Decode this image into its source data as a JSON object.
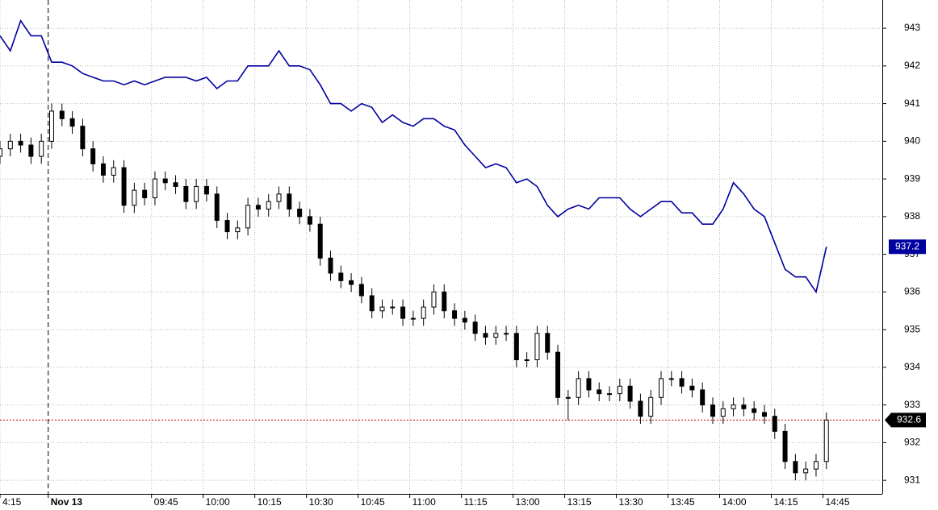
{
  "chart_data": {
    "type": "candlestick",
    "x": [
      0,
      3,
      6,
      9,
      12,
      15,
      18,
      21,
      24,
      27,
      30,
      33,
      36,
      39,
      42,
      45,
      48,
      51,
      54,
      57,
      60,
      63,
      66,
      69,
      72,
      75,
      78,
      81,
      84,
      87,
      90,
      93,
      96,
      99,
      102,
      105,
      108,
      111,
      114,
      117,
      120,
      123,
      126,
      129,
      132,
      135,
      138,
      141,
      144,
      147,
      150,
      153,
      156,
      159,
      162,
      165,
      168,
      171,
      174,
      177,
      180,
      183,
      186,
      189,
      192,
      195,
      198,
      201,
      204,
      207,
      210,
      213,
      216,
      219,
      222,
      225,
      228,
      231,
      234,
      237,
      240
    ],
    "open": [
      939.6,
      939.8,
      940.0,
      939.9,
      939.6,
      940.0,
      940.8,
      940.6,
      940.4,
      939.8,
      939.4,
      939.1,
      939.3,
      938.3,
      938.7,
      938.5,
      939.0,
      938.9,
      938.8,
      938.4,
      938.8,
      938.6,
      937.9,
      937.6,
      937.7,
      938.3,
      938.2,
      938.4,
      938.6,
      938.2,
      938.0,
      937.8,
      936.9,
      936.5,
      936.3,
      936.2,
      935.9,
      935.5,
      935.6,
      935.6,
      935.3,
      935.3,
      935.6,
      936.0,
      935.5,
      935.3,
      935.2,
      934.9,
      934.8,
      934.9,
      934.9,
      934.2,
      934.2,
      934.9,
      934.4,
      933.2,
      933.2,
      933.7,
      933.4,
      933.3,
      933.3,
      933.5,
      933.1,
      932.7,
      933.2,
      933.7,
      933.7,
      933.5,
      933.4,
      933.0,
      932.7,
      932.9,
      933.0,
      932.9,
      932.8,
      932.7,
      932.3,
      931.5,
      931.2,
      931.3,
      931.5
    ],
    "high": [
      940.0,
      940.2,
      940.2,
      940.1,
      940.2,
      941.0,
      941.0,
      940.8,
      940.6,
      940.0,
      939.6,
      939.5,
      939.5,
      938.9,
      938.9,
      939.2,
      939.2,
      939.1,
      939.0,
      939.0,
      939.0,
      938.8,
      938.1,
      937.9,
      938.5,
      938.5,
      938.6,
      938.8,
      938.8,
      938.4,
      938.2,
      938.0,
      937.1,
      936.7,
      936.5,
      936.4,
      936.1,
      935.8,
      935.8,
      935.8,
      935.5,
      935.8,
      936.2,
      936.2,
      935.7,
      935.5,
      935.4,
      935.1,
      935.1,
      935.1,
      935.1,
      934.4,
      935.1,
      935.1,
      934.6,
      933.4,
      933.9,
      933.9,
      933.6,
      933.5,
      933.7,
      933.7,
      933.3,
      933.4,
      933.9,
      933.9,
      933.9,
      933.7,
      933.6,
      933.2,
      933.1,
      933.2,
      933.2,
      933.1,
      933.0,
      932.9,
      932.5,
      931.7,
      931.5,
      931.7,
      932.8
    ],
    "low": [
      939.4,
      939.6,
      939.7,
      939.4,
      939.4,
      939.8,
      940.4,
      940.2,
      939.6,
      939.2,
      938.9,
      938.9,
      938.1,
      938.1,
      938.3,
      938.3,
      938.7,
      938.6,
      938.2,
      938.2,
      938.4,
      937.7,
      937.4,
      937.4,
      937.5,
      938.0,
      938.0,
      938.2,
      938.0,
      937.8,
      937.6,
      936.7,
      936.3,
      936.1,
      936.0,
      935.7,
      935.3,
      935.3,
      935.4,
      935.1,
      935.1,
      935.1,
      935.4,
      935.3,
      935.1,
      935.0,
      934.7,
      934.6,
      934.6,
      934.7,
      934.0,
      934.0,
      934.0,
      934.2,
      933.0,
      932.6,
      933.0,
      933.2,
      933.1,
      933.1,
      933.1,
      932.9,
      932.5,
      932.5,
      933.0,
      933.5,
      933.3,
      933.2,
      932.8,
      932.5,
      932.5,
      932.7,
      932.7,
      932.6,
      932.5,
      932.1,
      931.3,
      931.0,
      931.0,
      931.1,
      931.3
    ],
    "close": [
      939.8,
      940.0,
      939.9,
      939.6,
      940.0,
      940.8,
      940.6,
      940.4,
      939.8,
      939.4,
      939.1,
      939.3,
      938.3,
      938.7,
      938.5,
      939.0,
      938.9,
      938.8,
      938.4,
      938.8,
      938.6,
      937.9,
      937.6,
      937.7,
      938.3,
      938.2,
      938.4,
      938.6,
      938.2,
      938.0,
      937.8,
      936.9,
      936.5,
      936.3,
      936.2,
      935.9,
      935.5,
      935.6,
      935.6,
      935.3,
      935.3,
      935.6,
      936.0,
      935.5,
      935.3,
      935.2,
      934.9,
      934.8,
      934.9,
      934.9,
      934.2,
      934.2,
      934.9,
      934.4,
      933.2,
      933.2,
      933.7,
      933.4,
      933.3,
      933.3,
      933.5,
      933.1,
      932.7,
      933.2,
      933.7,
      933.7,
      933.5,
      933.4,
      933.0,
      932.7,
      932.9,
      933.0,
      932.9,
      932.8,
      932.7,
      932.3,
      931.5,
      931.2,
      931.3,
      931.5,
      932.6
    ],
    "up_color": "#ffffff",
    "down_color": "#000000",
    "last_line_color": "#cc0000",
    "line": {
      "type": "line",
      "color": "#0000a0",
      "values": [
        942.8,
        942.4,
        943.2,
        942.8,
        942.8,
        942.1,
        942.1,
        942.0,
        941.8,
        941.7,
        941.6,
        941.6,
        941.5,
        941.6,
        941.5,
        941.6,
        941.7,
        941.7,
        941.7,
        941.6,
        941.7,
        941.4,
        941.6,
        941.6,
        942.0,
        942.0,
        942.0,
        942.4,
        942.0,
        942.0,
        941.9,
        941.5,
        941.0,
        941.0,
        940.8,
        941.0,
        940.9,
        940.5,
        940.7,
        940.5,
        940.4,
        940.6,
        940.6,
        940.4,
        940.3,
        939.9,
        939.6,
        939.3,
        939.4,
        939.3,
        938.9,
        939.0,
        938.8,
        938.3,
        938.0,
        938.2,
        938.3,
        938.2,
        938.5,
        938.5,
        938.5,
        938.2,
        938.0,
        938.2,
        938.4,
        938.4,
        938.1,
        938.1,
        937.8,
        937.8,
        938.2,
        938.9,
        938.6,
        938.2,
        938.0,
        937.3,
        936.6,
        936.4,
        936.4,
        936.0,
        937.2
      ]
    },
    "xlim": [
      0,
      256
    ],
    "xticks": [
      {
        "value": 0,
        "label": "4:15"
      },
      {
        "value": 14,
        "label": "Nov 13"
      },
      {
        "value": 44,
        "label": "09:45"
      },
      {
        "value": 59,
        "label": "10:00"
      },
      {
        "value": 74,
        "label": "10:15"
      },
      {
        "value": 89,
        "label": "10:30"
      },
      {
        "value": 104,
        "label": "10:45"
      },
      {
        "value": 119,
        "label": "11:00"
      },
      {
        "value": 134,
        "label": "11:15"
      },
      {
        "value": 149,
        "label": "13:00"
      },
      {
        "value": 164,
        "label": "13:15"
      },
      {
        "value": 179,
        "label": "13:30"
      },
      {
        "value": 194,
        "label": "13:45"
      },
      {
        "value": 209,
        "label": "14:00"
      },
      {
        "value": 224,
        "label": "14:15"
      },
      {
        "value": 239,
        "label": "14:45"
      }
    ],
    "ylim": [
      930.64,
      943.75
    ],
    "yticks": [
      931,
      932,
      933,
      934,
      935,
      936,
      937,
      938,
      939,
      940,
      941,
      942,
      943
    ],
    "grid": true
  }
}
